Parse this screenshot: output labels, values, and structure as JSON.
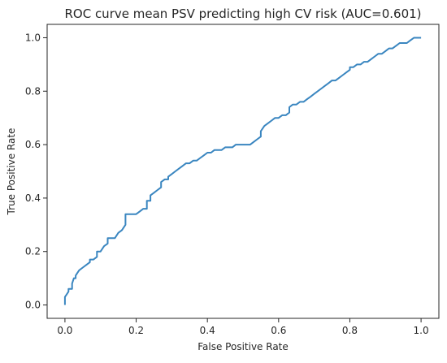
{
  "chart_data": {
    "type": "line",
    "title": "ROC curve mean PSV predicting high CV risk (AUC=0.601)",
    "xlabel": "False Positive Rate",
    "ylabel": "True Positive Rate",
    "xlim": [
      -0.05,
      1.05
    ],
    "ylim": [
      -0.05,
      1.05
    ],
    "xticks": [
      "0.0",
      "0.2",
      "0.4",
      "0.6",
      "0.8",
      "1.0"
    ],
    "yticks": [
      "0.0",
      "0.2",
      "0.4",
      "0.6",
      "0.8",
      "1.0"
    ],
    "grid": false,
    "legend": "none",
    "series": [
      {
        "color": "#3a86c0",
        "x": [
          0.0,
          0.0,
          0.005,
          0.01,
          0.01,
          0.02,
          0.02,
          0.025,
          0.03,
          0.03,
          0.035,
          0.04,
          0.05,
          0.06,
          0.07,
          0.07,
          0.08,
          0.09,
          0.09,
          0.1,
          0.11,
          0.12,
          0.12,
          0.13,
          0.14,
          0.15,
          0.15,
          0.16,
          0.17,
          0.17,
          0.18,
          0.19,
          0.2,
          0.2,
          0.21,
          0.22,
          0.23,
          0.23,
          0.24,
          0.24,
          0.25,
          0.26,
          0.27,
          0.27,
          0.28,
          0.29,
          0.29,
          0.3,
          0.31,
          0.32,
          0.33,
          0.34,
          0.35,
          0.36,
          0.37,
          0.38,
          0.39,
          0.4,
          0.41,
          0.42,
          0.43,
          0.44,
          0.45,
          0.46,
          0.47,
          0.48,
          0.49,
          0.5,
          0.51,
          0.52,
          0.53,
          0.54,
          0.55,
          0.55,
          0.56,
          0.57,
          0.58,
          0.59,
          0.6,
          0.61,
          0.62,
          0.63,
          0.63,
          0.64,
          0.65,
          0.66,
          0.67,
          0.68,
          0.69,
          0.7,
          0.71,
          0.72,
          0.73,
          0.74,
          0.75,
          0.76,
          0.77,
          0.78,
          0.79,
          0.8,
          0.8,
          0.81,
          0.82,
          0.83,
          0.84,
          0.85,
          0.86,
          0.87,
          0.88,
          0.89,
          0.9,
          0.91,
          0.92,
          0.93,
          0.94,
          0.95,
          0.96,
          0.97,
          0.98,
          0.99,
          1.0
        ],
        "y": [
          0.0,
          0.03,
          0.04,
          0.05,
          0.06,
          0.06,
          0.08,
          0.1,
          0.1,
          0.11,
          0.12,
          0.13,
          0.14,
          0.15,
          0.16,
          0.17,
          0.17,
          0.18,
          0.2,
          0.2,
          0.22,
          0.23,
          0.25,
          0.25,
          0.25,
          0.27,
          0.27,
          0.28,
          0.3,
          0.34,
          0.34,
          0.34,
          0.34,
          0.34,
          0.35,
          0.36,
          0.36,
          0.39,
          0.39,
          0.41,
          0.42,
          0.43,
          0.44,
          0.46,
          0.47,
          0.47,
          0.48,
          0.49,
          0.5,
          0.51,
          0.52,
          0.53,
          0.53,
          0.54,
          0.54,
          0.55,
          0.56,
          0.57,
          0.57,
          0.58,
          0.58,
          0.58,
          0.59,
          0.59,
          0.59,
          0.6,
          0.6,
          0.6,
          0.6,
          0.6,
          0.61,
          0.62,
          0.63,
          0.65,
          0.67,
          0.68,
          0.69,
          0.7,
          0.7,
          0.71,
          0.71,
          0.72,
          0.74,
          0.75,
          0.75,
          0.76,
          0.76,
          0.77,
          0.78,
          0.79,
          0.8,
          0.81,
          0.82,
          0.83,
          0.84,
          0.84,
          0.85,
          0.86,
          0.87,
          0.88,
          0.89,
          0.89,
          0.9,
          0.9,
          0.91,
          0.91,
          0.92,
          0.93,
          0.94,
          0.94,
          0.95,
          0.96,
          0.96,
          0.97,
          0.98,
          0.98,
          0.98,
          0.99,
          1.0,
          1.0,
          1.0
        ]
      }
    ]
  }
}
